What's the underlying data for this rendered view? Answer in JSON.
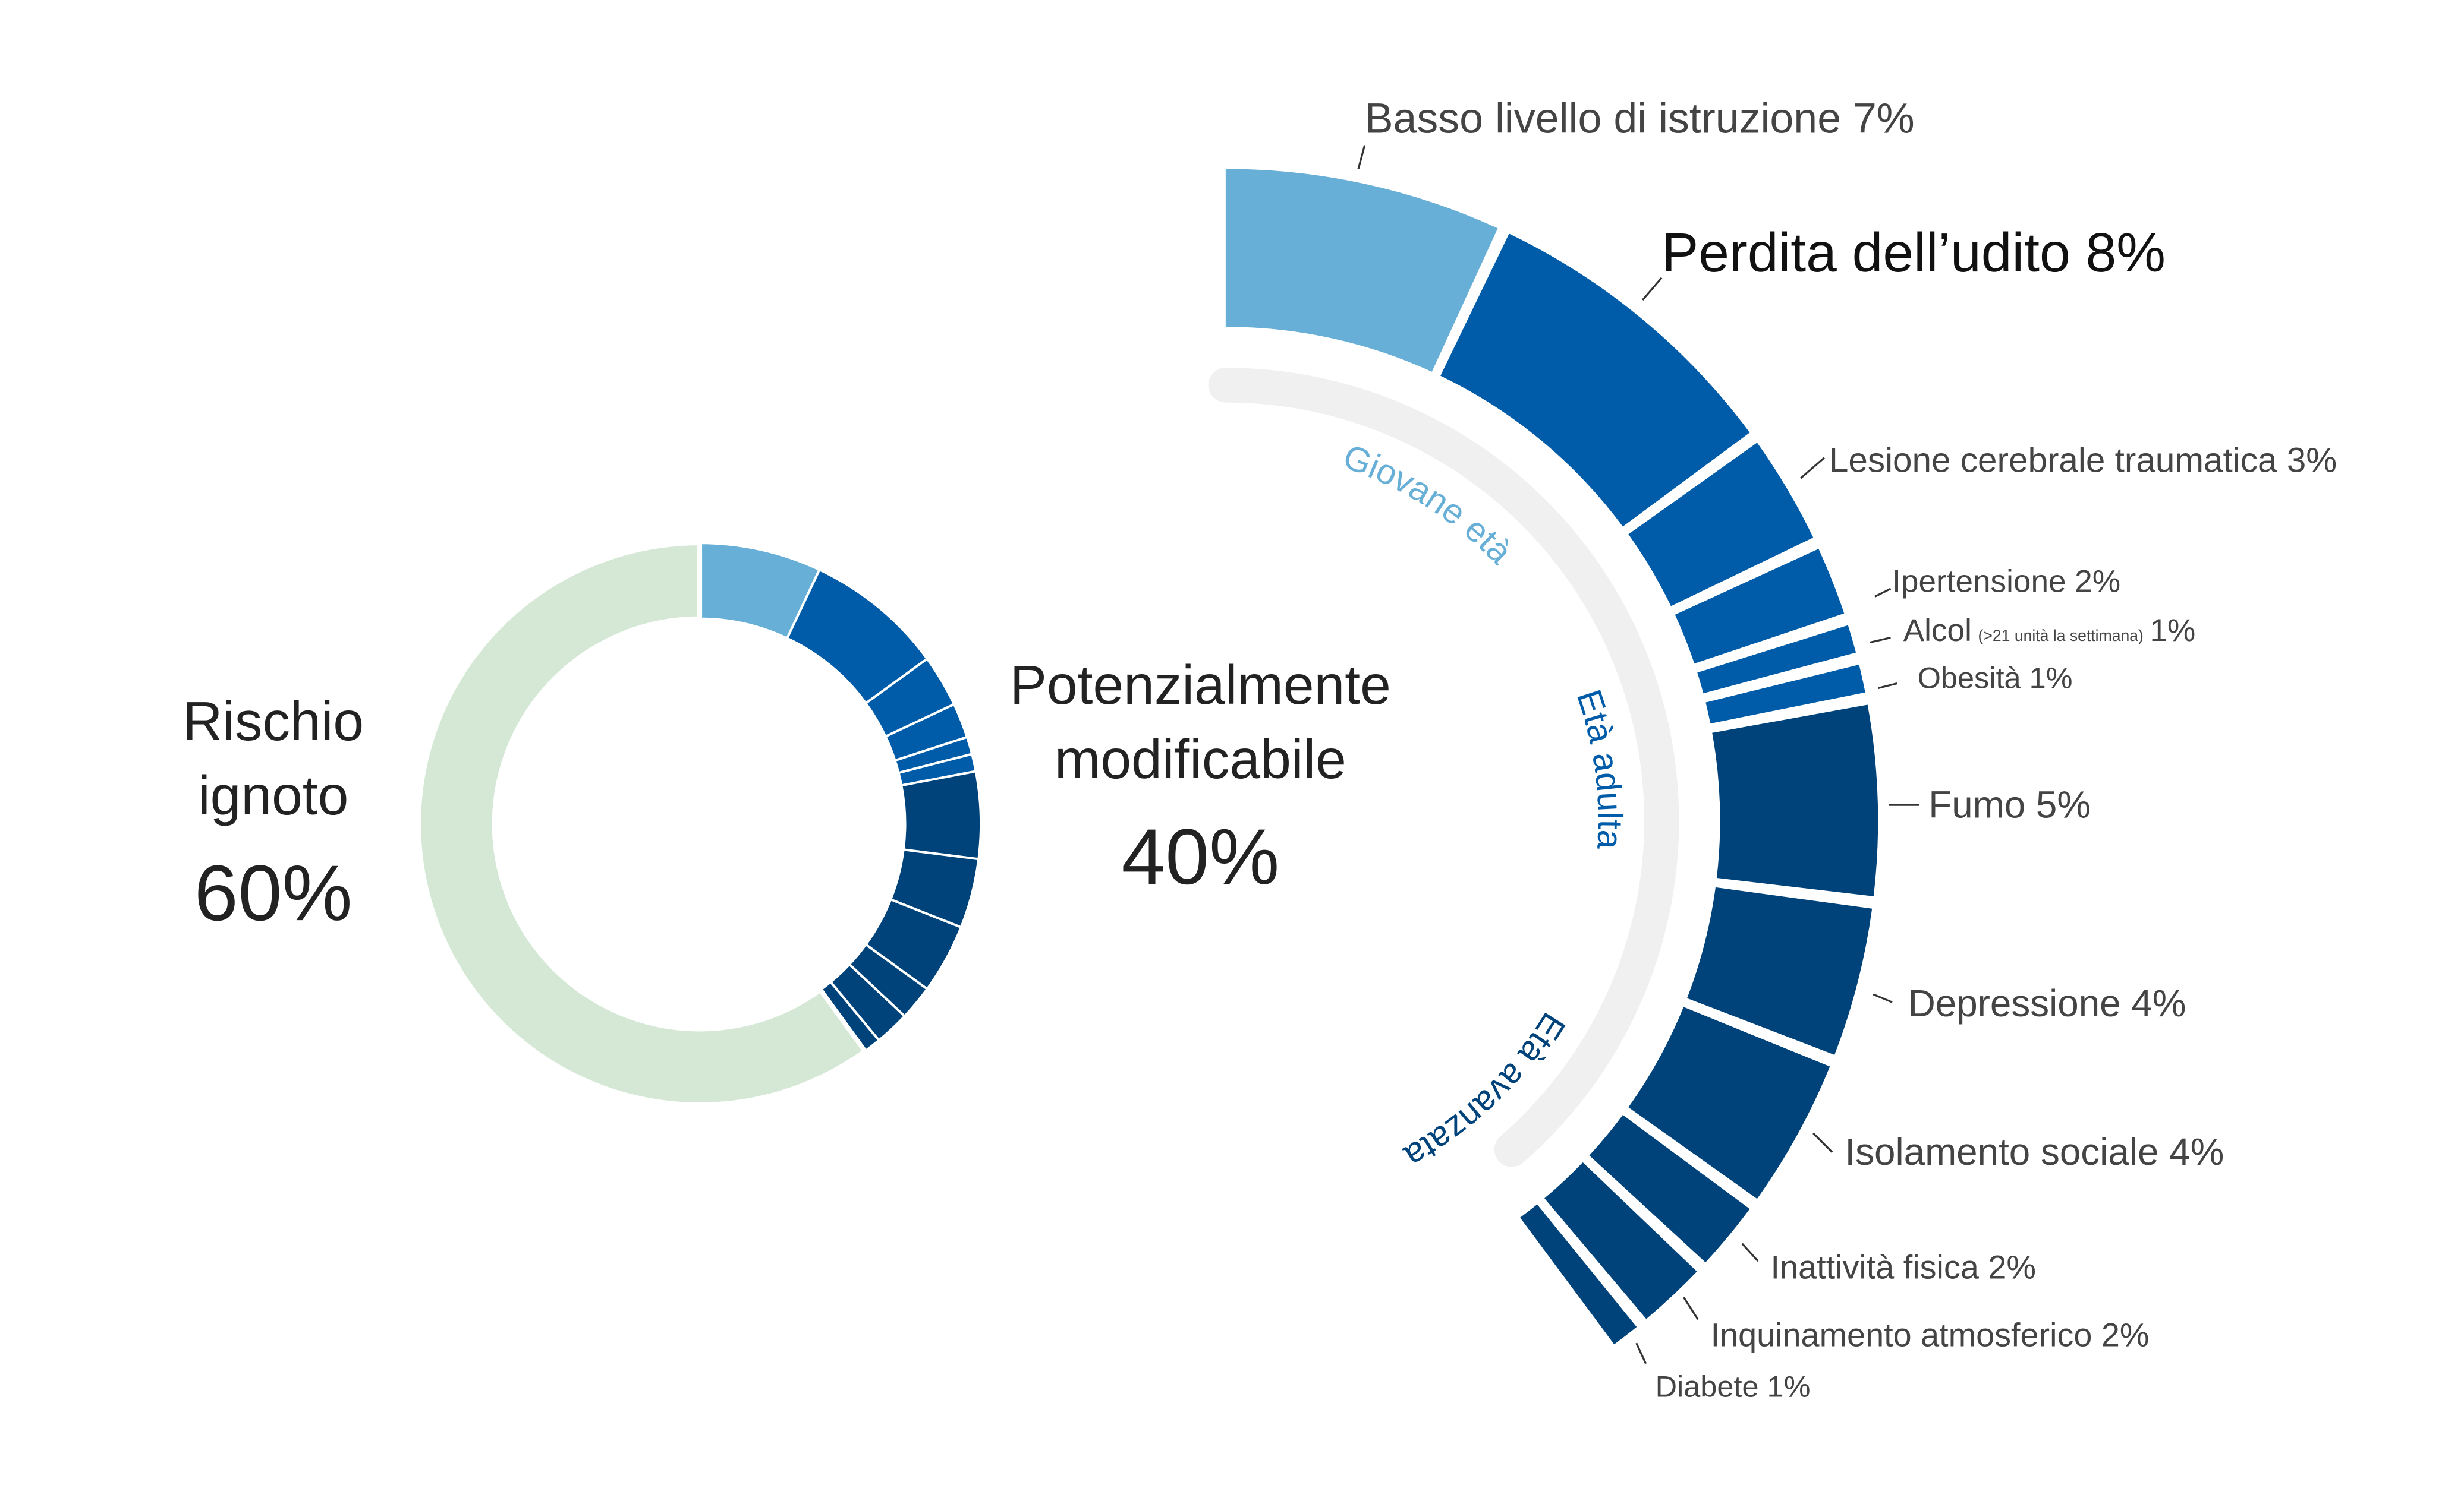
{
  "chart_data": [
    {
      "type": "pie",
      "variant": "donut",
      "slices": [
        {
          "label": "Potenzialmente modificabile",
          "value": 40
        },
        {
          "label": "Rischio ignoto",
          "value": 60
        }
      ],
      "annotations": {
        "unknown": {
          "line1": "Rischio",
          "line2": "ignoto",
          "value": "60%"
        },
        "modifiable": {
          "line1": "Potenzialmente",
          "line2": "modificabile",
          "value": "40%"
        }
      },
      "colors": {
        "unknown": "#d5e8d5"
      }
    },
    {
      "type": "pie",
      "variant": "partial-donut",
      "categories": [
        {
          "label": "Basso livello di istruzione 7%",
          "value": 7,
          "stage": "Giovane età"
        },
        {
          "label": "Perdita dell’udito 8%",
          "value": 8,
          "stage": "Età adulta"
        },
        {
          "label": "Lesione cerebrale traumatica 3%",
          "value": 3,
          "stage": "Età adulta"
        },
        {
          "label": "Ipertensione 2%",
          "value": 2,
          "stage": "Età adulta"
        },
        {
          "label": "Alcol",
          "note": "(>21 unità la settimana)",
          "suffix": "1%",
          "value": 1,
          "stage": "Età adulta"
        },
        {
          "label": "Obesità 1%",
          "value": 1,
          "stage": "Età adulta"
        },
        {
          "label": "Fumo 5%",
          "value": 5,
          "stage": "Età avanzata"
        },
        {
          "label": "Depressione 4%",
          "value": 4,
          "stage": "Età avanzata"
        },
        {
          "label": "Isolamento sociale 4%",
          "value": 4,
          "stage": "Età avanzata"
        },
        {
          "label": "Inattività fisica 2%",
          "value": 2,
          "stage": "Età avanzata"
        },
        {
          "label": "Inquinamento atmosferico 2%",
          "value": 2,
          "stage": "Età avanzata"
        },
        {
          "label": "Diabete 1%",
          "value": 1,
          "stage": "Età avanzata"
        }
      ],
      "stages": [
        {
          "label": "Giovane età",
          "color": "#67afd6"
        },
        {
          "label": "Età adulta",
          "color": "#005ca8"
        },
        {
          "label": "Età avanzata",
          "color": "#00437a"
        }
      ]
    }
  ]
}
